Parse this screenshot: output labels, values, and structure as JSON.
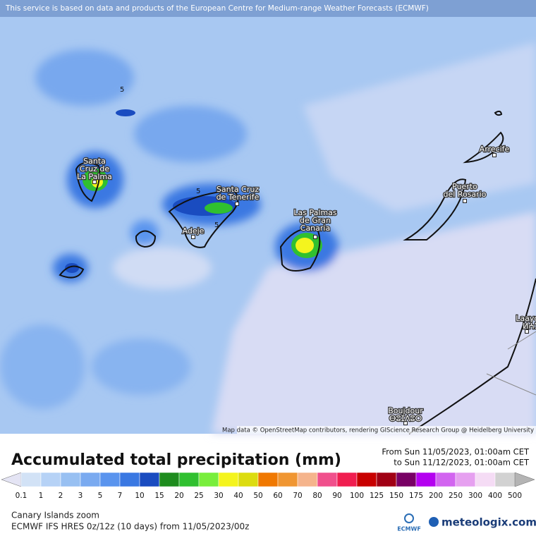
{
  "notice": "This service is based on data and products of the European Centre for Medium-range Weather Forecasts (ECMWF)",
  "places": [
    {
      "lines": [
        "Santa",
        "Cruz de",
        "La Palma"
      ]
    },
    {
      "lines": [
        "Santa Cruz",
        "de Tenerife"
      ]
    },
    {
      "lines": [
        "Adeje"
      ]
    },
    {
      "lines": [
        "Las Palmas",
        "de Gran",
        "Canaria"
      ]
    },
    {
      "lines": [
        "Puerto",
        "del Rosario"
      ]
    },
    {
      "lines": [
        "Arrecife"
      ]
    },
    {
      "lines": [
        "Laayoune",
        "ⵍⵄⵢⵓⵏ"
      ]
    },
    {
      "lines": [
        "Boujdour",
        "ⴱⵓⵊⴷⵓⵔ"
      ]
    }
  ],
  "contour_labels": [
    "5",
    "5",
    "5"
  ],
  "attribution": "Map data © OpenStreetMap contributors, rendering GIScience Research Group @ Heidelberg University",
  "title": "Accumulated total precipitation (mm)",
  "period": [
    "From Sun 11/05/2023, 01:00am CET",
    "to Sun 11/12/2023, 01:00am CET"
  ],
  "legend": {
    "ticks": [
      0.1,
      1,
      2,
      3,
      5,
      7,
      10,
      15,
      20,
      25,
      30,
      40,
      50,
      60,
      70,
      80,
      90,
      100,
      125,
      150,
      175,
      200,
      250,
      300,
      400,
      500
    ],
    "colors": [
      "#e4e4f4",
      "#d2e2f6",
      "#b6d2f6",
      "#98c0f2",
      "#7aaaf0",
      "#5a94ee",
      "#3a78e2",
      "#1a4cc0",
      "#1e8c1e",
      "#30c030",
      "#78ee3c",
      "#f4f41e",
      "#dcdc10",
      "#f07800",
      "#f09632",
      "#f5b48c",
      "#f0508c",
      "#f01e50",
      "#c80000",
      "#a00014",
      "#780064",
      "#b400f0",
      "#d264f0",
      "#e6a0f0",
      "#f5dcf5",
      "#d2d2d2",
      "#b4b4b4"
    ]
  },
  "footer": [
    "Canary Islands zoom",
    "ECMWF IFS HRES 0z/12z (10 days) from 11/05/2023/00z"
  ],
  "logos": [
    "ECMWF",
    "meteologix.com"
  ]
}
